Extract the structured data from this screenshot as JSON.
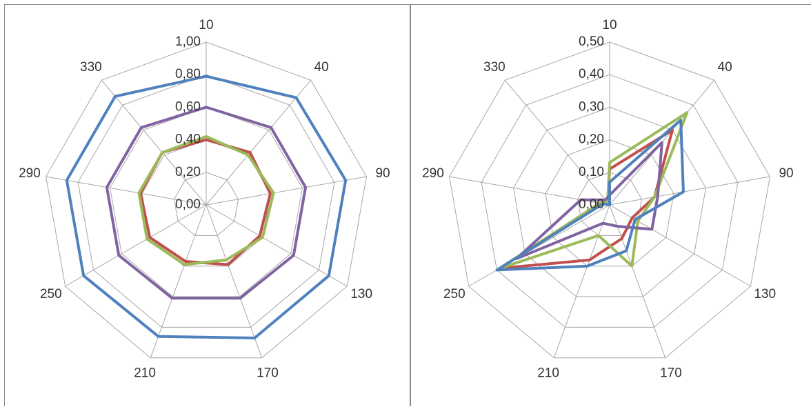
{
  "chart_data": [
    {
      "type": "radar",
      "categories": [
        "10",
        "40",
        "90",
        "130",
        "170",
        "210",
        "250",
        "290",
        "330"
      ],
      "ticks": [
        "0,00",
        "0,20",
        "0,40",
        "0,60",
        "0,80",
        "1,00"
      ],
      "rlim": [
        0,
        1.0
      ],
      "grid": true,
      "legend": "none",
      "series": [
        {
          "color": "#c0504d",
          "values": [
            0.4,
            0.42,
            0.4,
            0.38,
            0.39,
            0.37,
            0.4,
            0.41,
            0.42
          ]
        },
        {
          "color": "#9bbb59",
          "values": [
            0.42,
            0.4,
            0.42,
            0.4,
            0.36,
            0.39,
            0.42,
            0.42,
            0.42
          ]
        },
        {
          "color": "#8064a2",
          "values": [
            0.6,
            0.62,
            0.62,
            0.62,
            0.61,
            0.61,
            0.62,
            0.62,
            0.62
          ]
        },
        {
          "color": "#4f81bd",
          "values": [
            0.79,
            0.86,
            0.87,
            0.87,
            0.87,
            0.86,
            0.87,
            0.87,
            0.87
          ]
        }
      ]
    },
    {
      "type": "radar",
      "categories": [
        "10",
        "40",
        "90",
        "130",
        "170",
        "210",
        "250",
        "290",
        "330"
      ],
      "ticks": [
        "0,00",
        "0,10",
        "0,20",
        "0,30",
        "0,40",
        "0,50"
      ],
      "rlim": [
        0,
        0.5
      ],
      "grid": true,
      "legend": "none",
      "series": [
        {
          "color": "#c0504d",
          "values": [
            0.11,
            0.3,
            0.14,
            0.08,
            0.11,
            0.18,
            0.39,
            0.03,
            0.01
          ]
        },
        {
          "color": "#9bbb59",
          "values": [
            0.13,
            0.37,
            0.14,
            0.1,
            0.2,
            0.1,
            0.39,
            0.03,
            0.01
          ]
        },
        {
          "color": "#8064a2",
          "values": [
            0.03,
            0.25,
            0.15,
            0.15,
            0.07,
            0.06,
            0.33,
            0.09,
            0.02
          ]
        },
        {
          "color": "#4f81bd",
          "values": [
            0.07,
            0.34,
            0.23,
            0.09,
            0.15,
            0.2,
            0.4,
            0.02,
            0.0
          ]
        }
      ]
    }
  ]
}
